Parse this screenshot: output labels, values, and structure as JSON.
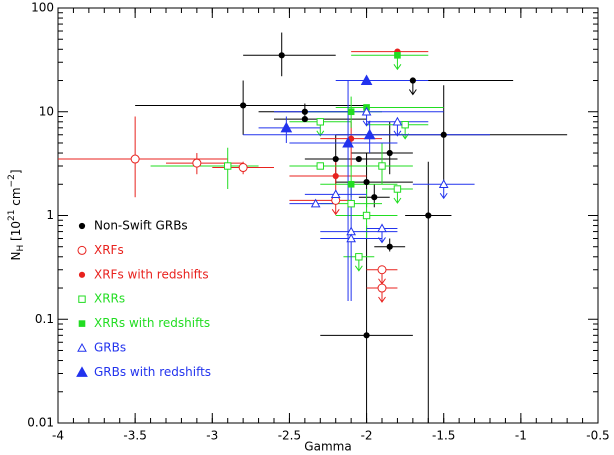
{
  "chart_data": {
    "type": "scatter",
    "xlabel": "Gamma",
    "ylabel": [
      {
        "text": "N"
      },
      {
        "text": "H",
        "shift": "sub"
      },
      {
        "text": " [10"
      },
      {
        "text": "21",
        "shift": "sup"
      },
      {
        "text": " cm"
      },
      {
        "text": "−2",
        "shift": "sup"
      },
      {
        "text": "]"
      }
    ],
    "xlim": [
      -4,
      -0.5
    ],
    "xticks": [
      -4,
      -3.5,
      -3,
      -2.5,
      -2,
      -1.5,
      -1,
      -0.5
    ],
    "ylim": [
      0.01,
      100
    ],
    "yticks": [
      0.01,
      0.1,
      1,
      10,
      100
    ],
    "log_y": true,
    "minor_ticks": true,
    "legend": "lower left",
    "series": [
      {
        "name": "Non-Swift GRBs",
        "color": "#000000",
        "marker": "circle",
        "filled": true,
        "x": [
          -2.55,
          -2.8,
          -2.4,
          -2.4,
          -1.7,
          -1.5,
          -2.2,
          -2.05,
          -1.85,
          -2.0,
          -1.95,
          -1.6,
          -1.85,
          -2.0
        ],
        "values": [
          35,
          11.5,
          10,
          8.5,
          20,
          6,
          3.5,
          3.5,
          4,
          2.1,
          1.5,
          1.0,
          0.5,
          0.07
        ],
        "x_lo": [
          -2.8,
          -3.5,
          -2.7,
          -2.6,
          -2.0,
          -2.2,
          -2.4,
          -2.3,
          -2.1,
          -2.2,
          -2.05,
          -1.75,
          -1.95,
          -2.3
        ],
        "x_hi": [
          -2.2,
          -2.0,
          -2.1,
          -2.0,
          -1.05,
          -0.7,
          -1.8,
          -1.8,
          -1.7,
          -1.7,
          -1.85,
          -1.45,
          -1.75,
          -1.7
        ],
        "y_lo": [
          22,
          6,
          8,
          null,
          null,
          2,
          2,
          null,
          2.5,
          1.2,
          1.2,
          0.01,
          0.45,
          0.01
        ],
        "y_hi": [
          58,
          20,
          12,
          null,
          null,
          18,
          6,
          null,
          8,
          4,
          2,
          3.3,
          0.6,
          0.8
        ],
        "upper_limit": [
          false,
          false,
          false,
          false,
          true,
          false,
          false,
          false,
          false,
          false,
          false,
          false,
          false,
          false
        ]
      },
      {
        "name": "XRFs",
        "color": "#e8221e",
        "marker": "circle",
        "filled": false,
        "x": [
          -3.5,
          -3.1,
          -2.8,
          -2.2,
          -1.9,
          -1.9
        ],
        "values": [
          3.5,
          3.2,
          2.9,
          1.4,
          0.3,
          0.2
        ],
        "x_lo": [
          -4,
          -3.3,
          -3.0,
          -2.5,
          -2.0,
          -2.0
        ],
        "x_hi": [
          -2.9,
          -2.8,
          -2.6,
          -2.1,
          -1.8,
          -1.8
        ],
        "y_lo": [
          1.5,
          2.5,
          2.5,
          null,
          null,
          null
        ],
        "y_hi": [
          9,
          4,
          3.3,
          null,
          null,
          null
        ],
        "upper_limit": [
          false,
          false,
          false,
          true,
          true,
          true
        ]
      },
      {
        "name": "XRFs with redshifts",
        "color": "#e8221e",
        "marker": "circle",
        "filled": true,
        "x": [
          -1.8,
          -2.1,
          -2.2
        ],
        "values": [
          38,
          5.5,
          2.4
        ],
        "x_lo": [
          -2.1,
          -2.3,
          -2.5
        ],
        "x_hi": [
          -1.6,
          -1.9,
          -2.0
        ],
        "y_lo": [
          null,
          3,
          1.5
        ],
        "y_hi": [
          null,
          8,
          3.5
        ],
        "upper_limit": [
          false,
          false,
          false
        ]
      },
      {
        "name": "XRRs",
        "color": "#22dd22",
        "marker": "square",
        "filled": false,
        "x": [
          -2.9,
          -2.3,
          -2.3,
          -2.1,
          -2.0,
          -1.75,
          -1.8,
          -1.9,
          -2.05
        ],
        "values": [
          3.0,
          8,
          3.0,
          1.3,
          1.0,
          7.5,
          1.8,
          3.0,
          0.4
        ],
        "x_lo": [
          -3.4,
          -2.5,
          -2.5,
          -2.3,
          -2.2,
          -2.0,
          -1.9,
          -2.1,
          -2.15
        ],
        "x_hi": [
          -2.7,
          -2.1,
          -2.1,
          -1.9,
          -1.8,
          -1.6,
          -1.7,
          -1.7,
          -1.95
        ],
        "y_lo": [
          1.8,
          null,
          null,
          null,
          0.6,
          null,
          null,
          2,
          null
        ],
        "y_hi": [
          4.5,
          null,
          null,
          null,
          1.8,
          null,
          null,
          5,
          null
        ],
        "upper_limit": [
          false,
          true,
          false,
          false,
          false,
          true,
          true,
          false,
          true
        ]
      },
      {
        "name": "XRRs with redshifts",
        "color": "#22dd22",
        "marker": "square",
        "filled": true,
        "x": [
          -1.8,
          -2.1,
          -2.1,
          -2.0
        ],
        "values": [
          35,
          10,
          2.0,
          11
        ],
        "x_lo": [
          -2.1,
          -2.4,
          -2.3,
          -2.2
        ],
        "x_hi": [
          -1.6,
          -1.9,
          -1.8,
          -1.5
        ],
        "y_lo": [
          null,
          7,
          1.5,
          null
        ],
        "y_hi": [
          null,
          14,
          3,
          null
        ],
        "upper_limit": [
          true,
          false,
          false,
          false
        ]
      },
      {
        "name": "GRBs",
        "color": "#2233ee",
        "marker": "triangle",
        "filled": false,
        "x": [
          -2.33,
          -2.2,
          -2.1,
          -2.1,
          -1.9,
          -1.8,
          -1.5,
          -2.0
        ],
        "values": [
          1.3,
          1.6,
          0.7,
          0.6,
          0.75,
          8,
          2.0,
          10
        ],
        "x_lo": [
          -2.5,
          -2.4,
          -2.3,
          -2.3,
          -2.0,
          -2.0,
          -1.7,
          -2.6
        ],
        "x_hi": [
          -2.2,
          -2.0,
          -1.8,
          -1.9,
          -1.8,
          -1.6,
          -1.3,
          -1.5
        ],
        "y_lo": [
          null,
          null,
          0.15,
          null,
          null,
          null,
          null,
          null
        ],
        "y_hi": [
          null,
          null,
          2,
          null,
          null,
          null,
          null,
          null
        ],
        "upper_limit": [
          false,
          false,
          false,
          false,
          true,
          true,
          true,
          true
        ]
      },
      {
        "name": "GRBs with redshifts",
        "color": "#2233ee",
        "marker": "triangle",
        "filled": true,
        "x": [
          -2.0,
          -2.52,
          -2.12,
          -1.98
        ],
        "values": [
          20,
          7,
          5,
          6
        ],
        "x_lo": [
          -2.2,
          -2.7,
          -2.5,
          -2.8
        ],
        "x_hi": [
          -1.6,
          -2.3,
          -1.8,
          -1.2
        ],
        "y_lo": [
          null,
          5,
          0.15,
          4
        ],
        "y_hi": [
          null,
          9,
          20,
          8
        ],
        "upper_limit": [
          false,
          false,
          false,
          false
        ]
      }
    ]
  }
}
